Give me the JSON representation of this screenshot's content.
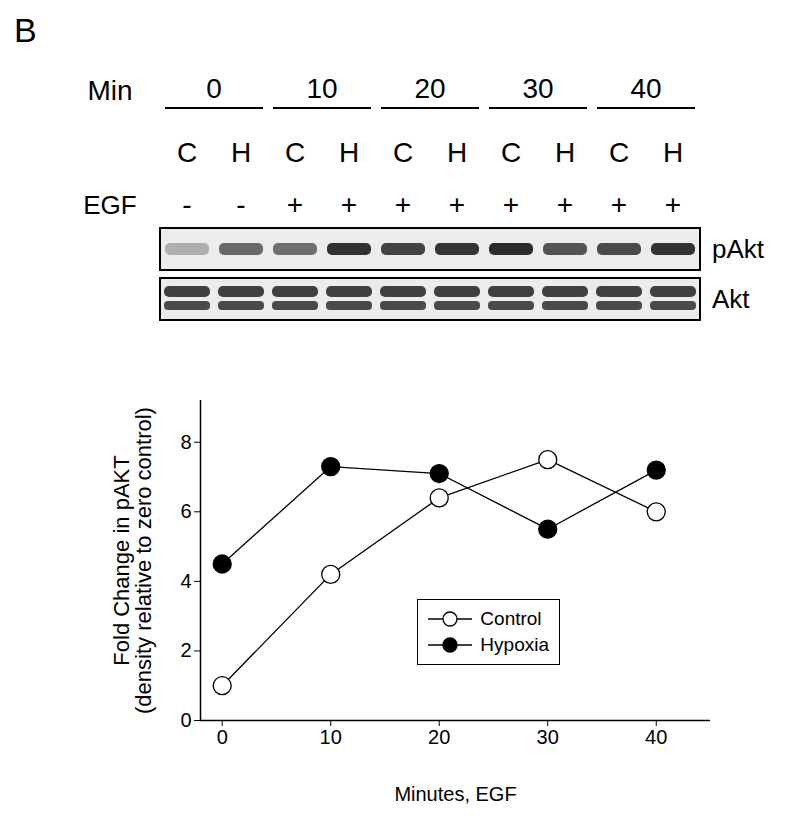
{
  "panel_label": "B",
  "blot": {
    "time_label": "Min",
    "times": [
      "0",
      "10",
      "20",
      "30",
      "40"
    ],
    "lanes": [
      "C",
      "H",
      "C",
      "H",
      "C",
      "H",
      "C",
      "H",
      "C",
      "H"
    ],
    "treatment_label": "EGF",
    "treatment": [
      "-",
      "-",
      "+",
      "+",
      "+",
      "+",
      "+",
      "+",
      "+",
      "+"
    ],
    "bands": [
      "pAkt",
      "Akt"
    ]
  },
  "chart_data": {
    "type": "line",
    "x_label": "Minutes, EGF",
    "y_label": "Fold Change in pAKT\n(density relative to zero control)",
    "x": [
      0,
      10,
      20,
      30,
      40
    ],
    "series": [
      {
        "name": "Control",
        "color": "#ffffff",
        "marker": "circle",
        "values": [
          1.0,
          4.2,
          6.4,
          7.5,
          6.0
        ]
      },
      {
        "name": "Hypoxia",
        "color": "#000000",
        "marker": "circle",
        "values": [
          4.5,
          7.3,
          7.1,
          5.5,
          7.2
        ]
      }
    ],
    "xlim": [
      -2,
      45
    ],
    "xticks": [
      0,
      10,
      20,
      30,
      40
    ],
    "ylim": [
      0,
      9.2
    ],
    "yticks": [
      0,
      2,
      4,
      6,
      8
    ],
    "legend": "lower right",
    "grid": false
  }
}
